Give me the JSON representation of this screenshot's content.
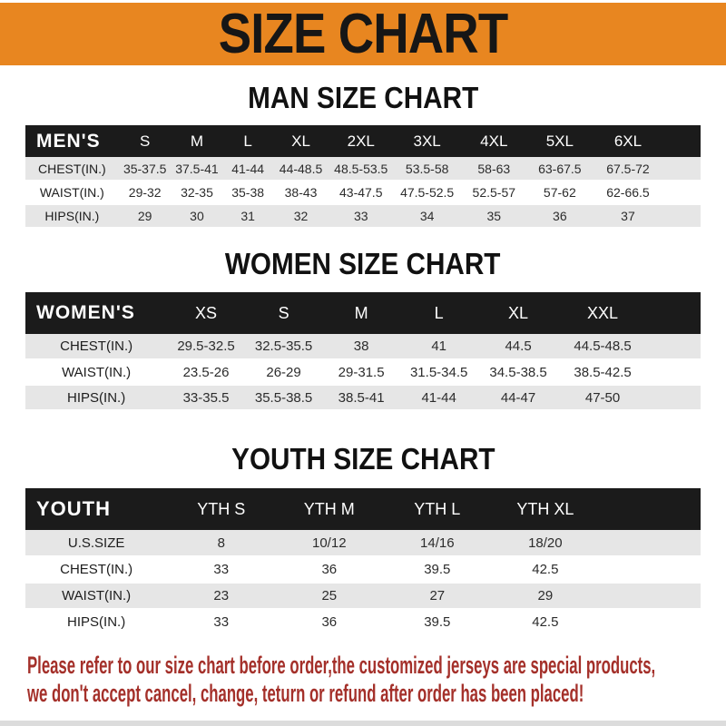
{
  "banner": {
    "title": "SIZE CHART"
  },
  "sections": [
    {
      "heading": "MAN SIZE CHART",
      "table": {
        "corner": "MEN'S",
        "columns": [
          "S",
          "M",
          "L",
          "XL",
          "2XL",
          "3XL",
          "4XL",
          "5XL",
          "6XL"
        ],
        "rows": [
          {
            "label": "CHEST(IN.)",
            "values": [
              "35-37.5",
              "37.5-41",
              "41-44",
              "44-48.5",
              "48.5-53.5",
              "53.5-58",
              "58-63",
              "63-67.5",
              "67.5-72"
            ]
          },
          {
            "label": "WAIST(IN.)",
            "values": [
              "29-32",
              "32-35",
              "35-38",
              "38-43",
              "43-47.5",
              "47.5-52.5",
              "52.5-57",
              "57-62",
              "62-66.5"
            ]
          },
          {
            "label": "HIPS(IN.)",
            "values": [
              "29",
              "30",
              "31",
              "32",
              "33",
              "34",
              "35",
              "36",
              "37"
            ]
          }
        ]
      }
    },
    {
      "heading": "WOMEN SIZE CHART",
      "table": {
        "corner": "WOMEN'S",
        "columns": [
          "XS",
          "S",
          "M",
          "L",
          "XL",
          "XXL"
        ],
        "rows": [
          {
            "label": "CHEST(IN.)",
            "values": [
              "29.5-32.5",
              "32.5-35.5",
              "38",
              "41",
              "44.5",
              "44.5-48.5"
            ]
          },
          {
            "label": "WAIST(IN.)",
            "values": [
              "23.5-26",
              "26-29",
              "29-31.5",
              "31.5-34.5",
              "34.5-38.5",
              "38.5-42.5"
            ]
          },
          {
            "label": "HIPS(IN.)",
            "values": [
              "33-35.5",
              "35.5-38.5",
              "38.5-41",
              "41-44",
              "44-47",
              "47-50"
            ]
          }
        ]
      }
    },
    {
      "heading": "YOUTH SIZE CHART",
      "table": {
        "corner": "YOUTH",
        "columns": [
          "YTH S",
          "YTH M",
          "YTH L",
          "YTH XL"
        ],
        "rows": [
          {
            "label": "U.S.SIZE",
            "values": [
              "8",
              "10/12",
              "14/16",
              "18/20"
            ]
          },
          {
            "label": "CHEST(IN.)",
            "values": [
              "33",
              "36",
              "39.5",
              "42.5"
            ]
          },
          {
            "label": "WAIST(IN.)",
            "values": [
              "23",
              "25",
              "27",
              "29"
            ]
          },
          {
            "label": "HIPS(IN.)",
            "values": [
              "33",
              "36",
              "39.5",
              "42.5"
            ]
          }
        ]
      }
    }
  ],
  "footer": {
    "line1": "Please refer to our size chart before order,the customized jerseys are special products,",
    "line2": "we don't accept cancel, change, teturn or refund after order has been placed!"
  },
  "colors": {
    "banner_bg": "#e88620",
    "header_bar_bg": "#1b1b1b",
    "alt_row_bg": "#e6e6e6",
    "footer_text": "#a4302a"
  }
}
